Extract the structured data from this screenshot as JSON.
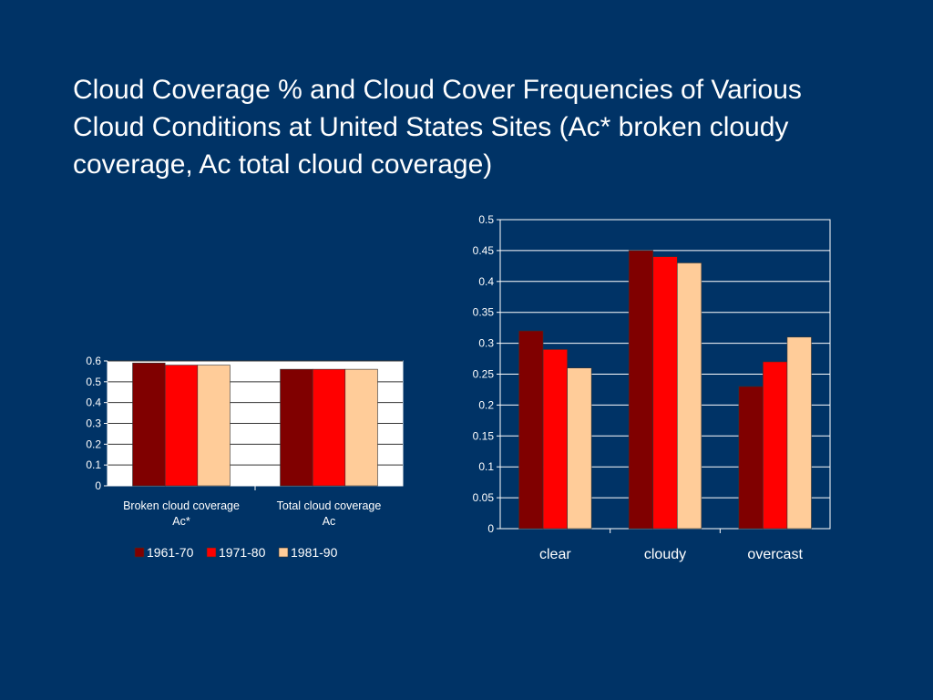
{
  "slide": {
    "title": "Cloud Coverage % and Cloud Cover Frequencies of Various Cloud Conditions at United States Sites (Ac* broken cloudy coverage, Ac total cloud coverage)"
  },
  "chart_data": [
    {
      "type": "bar",
      "categories": [
        [
          "Broken cloud coverage",
          "Ac*"
        ],
        [
          "Total cloud coverage",
          "Ac"
        ]
      ],
      "series": [
        {
          "name": "1961-70",
          "values": [
            0.59,
            0.56
          ],
          "color": "#800000"
        },
        {
          "name": "1971-80",
          "values": [
            0.58,
            0.56
          ],
          "color": "#ff0000"
        },
        {
          "name": "1981-90",
          "values": [
            0.58,
            0.56
          ],
          "color": "#ffcc99"
        }
      ],
      "ylim": [
        0,
        0.6
      ],
      "yticks": [
        "0",
        "0.1",
        "0.2",
        "0.3",
        "0.4",
        "0.5",
        "0.6"
      ],
      "grid": true,
      "legend": "bottom",
      "background": "#ffffff"
    },
    {
      "type": "bar",
      "categories": [
        "clear",
        "cloudy",
        "overcast"
      ],
      "series": [
        {
          "name": "1961-70",
          "values": [
            0.32,
            0.45,
            0.23
          ],
          "color": "#800000"
        },
        {
          "name": "1971-80",
          "values": [
            0.29,
            0.44,
            0.27
          ],
          "color": "#ff0000"
        },
        {
          "name": "1981-90",
          "values": [
            0.26,
            0.43,
            0.31
          ],
          "color": "#ffcc99"
        }
      ],
      "ylim": [
        0,
        0.5
      ],
      "yticks": [
        "0",
        "0.05",
        "0.1",
        "0.15",
        "0.2",
        "0.25",
        "0.3",
        "0.35",
        "0.4",
        "0.45",
        "0.5"
      ],
      "grid": true,
      "legend": "none",
      "background": "#003366"
    }
  ]
}
